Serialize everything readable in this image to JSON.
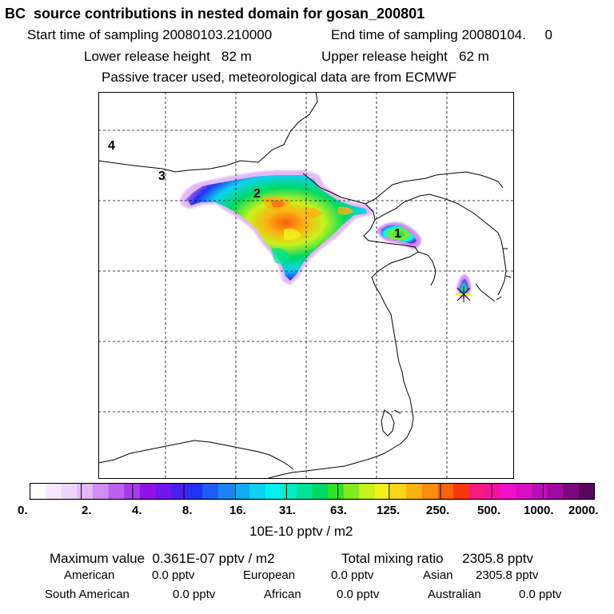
{
  "header": {
    "title": "BC  source contributions in nested domain for gosan_200801",
    "start_label": "Start time of sampling 20080103.210000",
    "end_label": "End time of sampling 20080104.     0",
    "lower_release": "Lower release height   82 m",
    "upper_release": "Upper release height   62 m",
    "tracer_note": "Passive tracer used, meteorological data are from ECMWF"
  },
  "map": {
    "labels": [
      "4",
      "3",
      "2",
      "1"
    ],
    "receptor_marker": "star-icon",
    "colors": {
      "coast": "#000000",
      "grid": "#000000",
      "frame": "#000000"
    }
  },
  "colorbar": {
    "colors": [
      "#ffffff",
      "#f7eaff",
      "#eed4fb",
      "#e3b8f8",
      "#cf8ef2",
      "#bd62ee",
      "#a83be9",
      "#8f12e6",
      "#6f17eb",
      "#4a20ef",
      "#2232f3",
      "#1f5cf3",
      "#1d84f3",
      "#13aaf2",
      "#0fd0f2",
      "#00f2f0",
      "#00eec4",
      "#00e49a",
      "#00da62",
      "#2fe02a",
      "#82ea22",
      "#c8f21c",
      "#f2f21a",
      "#fad616",
      "#fcb212",
      "#fb8c10",
      "#f9620e",
      "#f7380c",
      "#f7197c",
      "#f3129f",
      "#ef10c8",
      "#d60fc2",
      "#bd0cb7",
      "#9e0a9f",
      "#7c067f",
      "#5a045f"
    ],
    "ticks": [
      "0.",
      "2.",
      "4.",
      "8.",
      "16.",
      "31.",
      "63.",
      "125.",
      "250.",
      "500.",
      "1000.",
      "2000."
    ],
    "unit": "10E-10 pptv / m2"
  },
  "summary": {
    "max_value": "Maximum value  0.361E-07 pptv / m2",
    "total_mixing": "Total mixing ratio     2305.8 pptv",
    "regions": [
      {
        "name": "American",
        "value": "0.0 pptv"
      },
      {
        "name": "European",
        "value": "0.0 pptv"
      },
      {
        "name": "Asian",
        "value": "2305.8 pptv"
      },
      {
        "name": "South American",
        "value": "0.0 pptv"
      },
      {
        "name": "African",
        "value": "0.0 pptv"
      },
      {
        "name": "Australian",
        "value": "0.0 pptv"
      }
    ]
  }
}
